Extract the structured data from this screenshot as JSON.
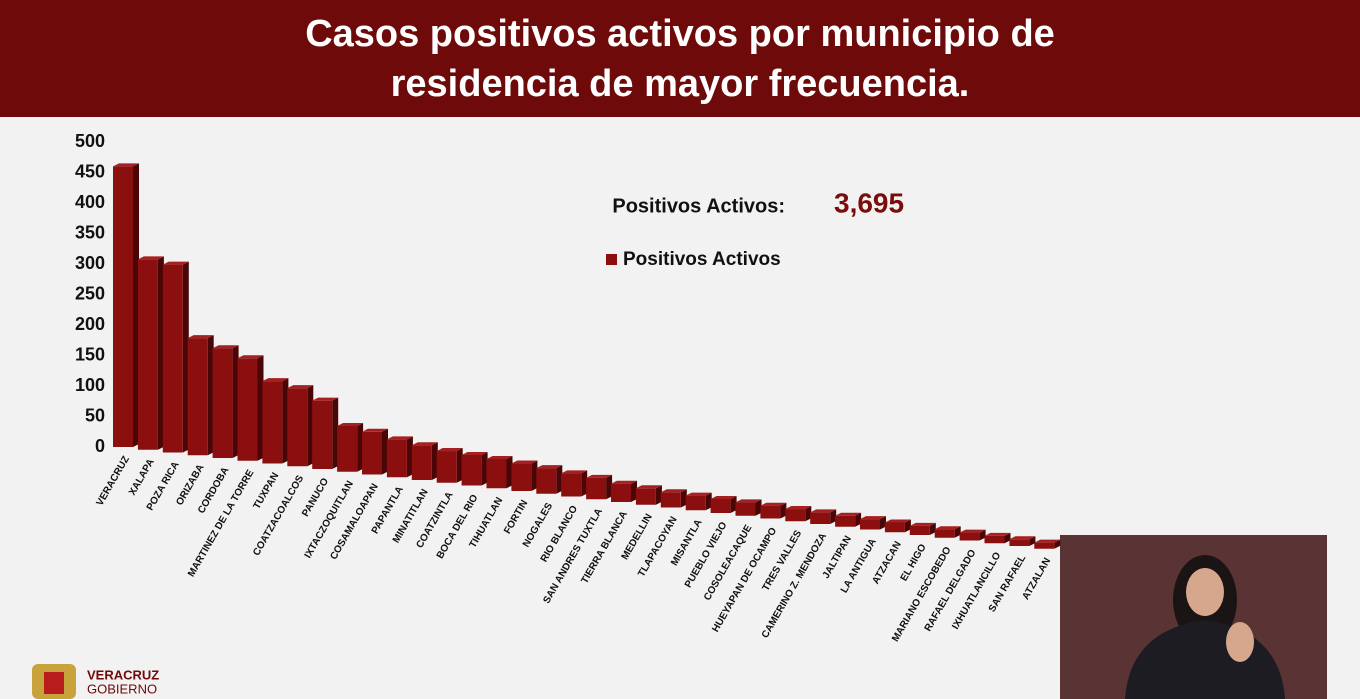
{
  "chart_data": {
    "type": "bar",
    "title_lines": [
      "Casos positivos activos por municipio de",
      "residencia de mayor frecuencia."
    ],
    "annotation_label": "Positivos Activos:",
    "annotation_value": "3,695",
    "categories": [
      "VERACRUZ",
      "XALAPA",
      "POZA RICA",
      "ORIZABA",
      "CORDOBA",
      "MARTINEZ DE LA TORRE",
      "TUXPAN",
      "COATZACOALCOS",
      "PANUCO",
      "IXTACZOQUITLAN",
      "COSAMALOAPAN",
      "PAPANTLA",
      "MINATITLAN",
      "COATZINTLA",
      "BOCA DEL RIO",
      "TIHUATLAN",
      "FORTIN",
      "NOGALES",
      "RIO BLANCO",
      "SAN ANDRES TUXTLA",
      "TIERRA BLANCA",
      "MEDELLIN",
      "TLAPACOYAN",
      "MISANTLA",
      "PUEBLO VIEJO",
      "COSOLEACAQUE",
      "HUEYAPAN DE OCAMPO",
      "TRES VALLES",
      "CAMERINO Z. MENDOZA",
      "JALTIPAN",
      "LA ANTIGUA",
      "ATZACAN",
      "EL HIGO",
      "MARIANO ESCOBEDO",
      "RAFAEL DELGADO",
      "IXHUATLANCILLO",
      "SAN RAFAEL",
      "ATZALAN"
    ],
    "series": [
      {
        "name": "Positivos Activos",
        "color": "#8b0f0f",
        "values": [
          460,
          312,
          308,
          192,
          180,
          168,
          135,
          128,
          112,
          75,
          70,
          62,
          57,
          52,
          50,
          48,
          45,
          42,
          38,
          35,
          30,
          27,
          25,
          24,
          23,
          22,
          21,
          20,
          19,
          18,
          17,
          16,
          15,
          14,
          13,
          12,
          11,
          10
        ]
      }
    ],
    "ylim": [
      0,
      500
    ],
    "yticks": [
      0,
      50,
      100,
      150,
      200,
      250,
      300,
      350,
      400,
      450,
      500
    ],
    "logo_lines": [
      "VERACRUZ",
      "GOBIERNO"
    ]
  }
}
